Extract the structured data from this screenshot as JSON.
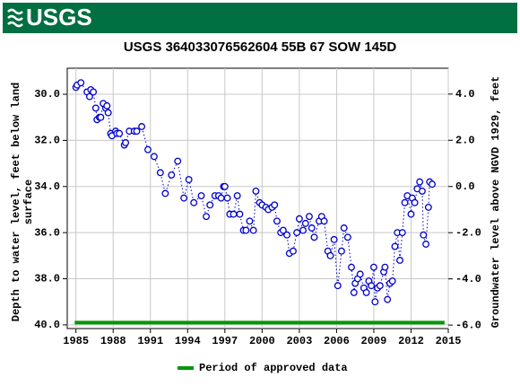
{
  "logo": "USGS",
  "chart_data": {
    "type": "scatter",
    "title": "USGS 364033076562604 55B 67 SOW 145D",
    "ylabel": [
      "Depth to water level, feet below land",
      "surface"
    ],
    "y2label": "Groundwater level above NGVD 1929, feet",
    "xlim": [
      1984.3,
      2015
    ],
    "ylim": [
      40.16,
      28.87
    ],
    "y2lim": [
      -6.15,
      5.12
    ],
    "xticks": [
      1985,
      1988,
      1991,
      1994,
      1997,
      2000,
      2003,
      2006,
      2009,
      2012,
      2015
    ],
    "yticks": [
      {
        "value": 30,
        "label": "30.0"
      },
      {
        "value": 32,
        "label": "32.0"
      },
      {
        "value": 34,
        "label": "34.0"
      },
      {
        "value": 36,
        "label": "36.0"
      },
      {
        "value": 38,
        "label": "38.0"
      },
      {
        "value": 40,
        "label": "40.0"
      }
    ],
    "y2ticks": [
      {
        "value": 4,
        "label": "4.0"
      },
      {
        "value": 2,
        "label": "2.0"
      },
      {
        "value": 0,
        "label": "0.0"
      },
      {
        "value": -2,
        "label": "-2.0"
      },
      {
        "value": -4,
        "label": "-4.0"
      },
      {
        "value": -6,
        "label": "-6.0"
      }
    ],
    "grid": true,
    "series": [
      {
        "color": "#0000cc",
        "x": [
          1985.0,
          1985.1,
          1985.4,
          1985.9,
          1986.1,
          1986.2,
          1986.4,
          1986.6,
          1986.7,
          1986.9,
          1987.0,
          1987.2,
          1987.4,
          1987.5,
          1987.6,
          1987.8,
          1987.9,
          1988.2,
          1988.3,
          1988.5,
          1988.9,
          1989.0,
          1989.3,
          1989.7,
          1989.9,
          1990.3,
          1990.8,
          1991.3,
          1991.8,
          1992.2,
          1992.7,
          1993.2,
          1993.7,
          1994.1,
          1994.5,
          1995.1,
          1995.5,
          1995.8,
          1996.2,
          1996.5,
          1996.7,
          1996.9,
          1997.0,
          1997.2,
          1997.4,
          1997.7,
          1998.0,
          1998.2,
          1998.5,
          1998.7,
          1999.0,
          1999.3,
          1999.5,
          1999.8,
          2000.0,
          2000.3,
          2000.5,
          2000.8,
          2001.0,
          2001.2,
          2001.5,
          2001.7,
          2002.0,
          2002.2,
          2002.5,
          2002.8,
          2003.0,
          2003.3,
          2003.5,
          2003.8,
          2004.0,
          2004.2,
          2004.6,
          2004.8,
          2005.0,
          2005.3,
          2005.5,
          2005.8,
          2006.1,
          2006.4,
          2006.6,
          2006.9,
          2007.2,
          2007.4,
          2007.5,
          2007.7,
          2007.9,
          2008.2,
          2008.4,
          2008.6,
          2008.8,
          2009.0,
          2009.1,
          2009.3,
          2009.5,
          2009.8,
          2009.9,
          2010.1,
          2010.3,
          2010.5,
          2010.7,
          2010.9,
          2011.1,
          2011.3,
          2011.5,
          2011.7,
          2012.0,
          2012.1,
          2012.3,
          2012.5,
          2012.7,
          2012.9,
          2013.0,
          2013.2,
          2013.4,
          2013.5,
          2013.7
        ],
        "values": [
          29.7,
          29.6,
          29.5,
          29.9,
          30.1,
          29.8,
          29.9,
          30.6,
          31.1,
          31.0,
          31.0,
          30.4,
          30.6,
          30.5,
          30.8,
          31.7,
          31.8,
          31.6,
          31.7,
          31.7,
          32.2,
          32.1,
          31.6,
          31.6,
          31.6,
          31.4,
          32.4,
          32.7,
          33.4,
          34.3,
          33.5,
          32.9,
          34.5,
          33.7,
          34.7,
          34.4,
          35.3,
          34.8,
          34.4,
          34.4,
          34.5,
          34.0,
          34.0,
          34.5,
          35.2,
          35.2,
          34.4,
          35.2,
          35.9,
          35.9,
          35.5,
          35.9,
          34.2,
          34.7,
          34.8,
          34.9,
          35.0,
          34.9,
          34.8,
          35.5,
          36.0,
          35.9,
          36.1,
          36.9,
          36.8,
          36.0,
          35.4,
          35.9,
          35.6,
          35.3,
          35.8,
          36.2,
          35.5,
          35.3,
          35.5,
          36.8,
          37.0,
          36.3,
          38.3,
          36.8,
          35.8,
          36.2,
          37.5,
          38.6,
          38.2,
          38.0,
          37.8,
          38.4,
          38.6,
          38.1,
          38.3,
          37.5,
          39.0,
          38.4,
          38.3,
          37.7,
          37.5,
          38.9,
          38.2,
          38.1,
          36.6,
          36.0,
          37.2,
          36.0,
          34.7,
          34.4,
          35.2,
          34.5,
          34.7,
          34.1,
          33.8,
          34.2,
          36.1,
          36.5,
          34.9,
          33.8,
          33.9
        ]
      }
    ],
    "approved": {
      "name": "Period of approved data",
      "color": "#009900",
      "x": [
        1984.9,
        2014.7
      ],
      "value": 39.9
    }
  }
}
